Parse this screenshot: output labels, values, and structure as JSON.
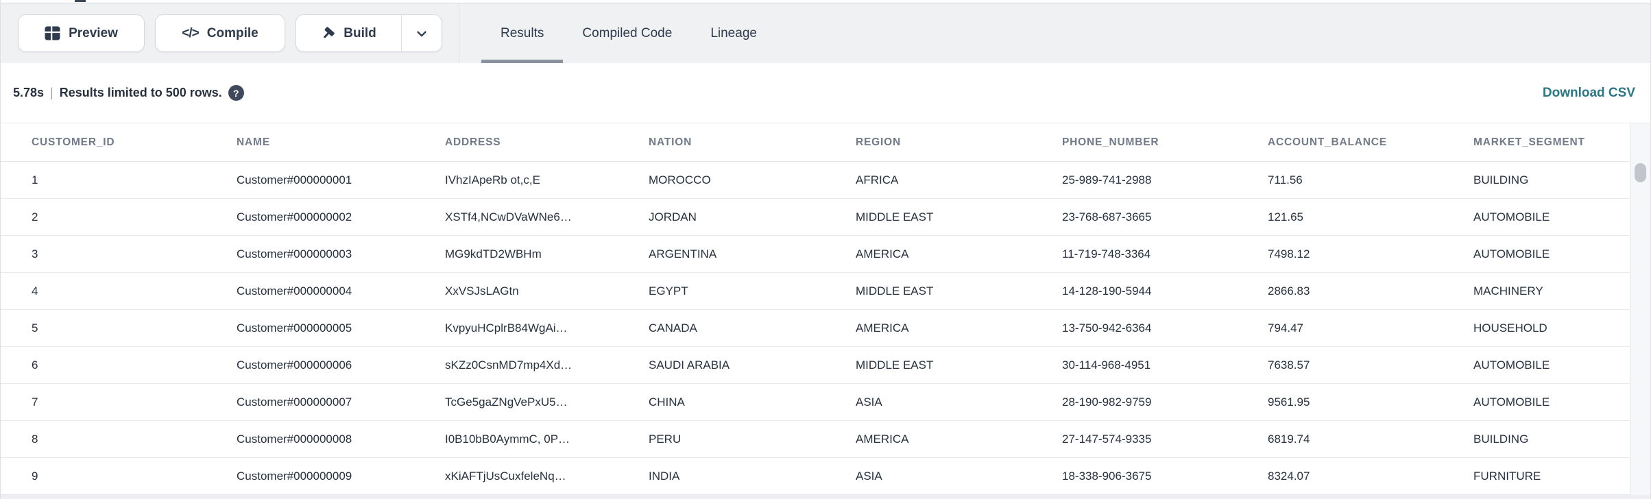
{
  "toolbar": {
    "preview_label": "Preview",
    "compile_label": "Compile",
    "build_label": "Build",
    "tabs": [
      {
        "label": "Results",
        "active": true
      },
      {
        "label": "Compiled Code",
        "active": false
      },
      {
        "label": "Lineage",
        "active": false
      }
    ]
  },
  "status": {
    "duration": "5.78s",
    "separator": "|",
    "message": "Results limited to 500 rows.",
    "help_glyph": "?"
  },
  "actions": {
    "download_csv_label": "Download CSV"
  },
  "table": {
    "columns": [
      "CUSTOMER_ID",
      "NAME",
      "ADDRESS",
      "NATION",
      "REGION",
      "PHONE_NUMBER",
      "ACCOUNT_BALANCE",
      "MARKET_SEGMENT"
    ],
    "rows": [
      [
        "1",
        "Customer#000000001",
        "IVhzIApeRb ot,c,E",
        "MOROCCO",
        "AFRICA",
        "25-989-741-2988",
        "711.56",
        "BUILDING"
      ],
      [
        "2",
        "Customer#000000002",
        "XSTf4,NCwDVaWNe6…",
        "JORDAN",
        "MIDDLE EAST",
        "23-768-687-3665",
        "121.65",
        "AUTOMOBILE"
      ],
      [
        "3",
        "Customer#000000003",
        "MG9kdTD2WBHm",
        "ARGENTINA",
        "AMERICA",
        "11-719-748-3364",
        "7498.12",
        "AUTOMOBILE"
      ],
      [
        "4",
        "Customer#000000004",
        "XxVSJsLAGtn",
        "EGYPT",
        "MIDDLE EAST",
        "14-128-190-5944",
        "2866.83",
        "MACHINERY"
      ],
      [
        "5",
        "Customer#000000005",
        "KvpyuHCplrB84WgAi…",
        "CANADA",
        "AMERICA",
        "13-750-942-6364",
        "794.47",
        "HOUSEHOLD"
      ],
      [
        "6",
        "Customer#000000006",
        "sKZz0CsnMD7mp4Xd…",
        "SAUDI ARABIA",
        "MIDDLE EAST",
        "30-114-968-4951",
        "7638.57",
        "AUTOMOBILE"
      ],
      [
        "7",
        "Customer#000000007",
        "TcGe5gaZNgVePxU5…",
        "CHINA",
        "ASIA",
        "28-190-982-9759",
        "9561.95",
        "AUTOMOBILE"
      ],
      [
        "8",
        "Customer#000000008",
        "I0B10bB0AymmC, 0P…",
        "PERU",
        "AMERICA",
        "27-147-574-9335",
        "6819.74",
        "BUILDING"
      ],
      [
        "9",
        "Customer#000000009",
        "xKiAFTjUsCuxfeleNq…",
        "INDIA",
        "ASIA",
        "18-338-906-3675",
        "8324.07",
        "FURNITURE"
      ]
    ]
  },
  "icons": {
    "preview": "table-grid-icon",
    "compile": "code-icon",
    "build": "hammer-icon",
    "build_menu": "chevron-down-icon",
    "help": "question-circle-icon"
  },
  "colors": {
    "accent_link": "#2a7787",
    "toolbar_bg": "#f0f1f3",
    "tab_underline": "#8a92a0",
    "header_text": "#717a89",
    "cell_text": "#27313f",
    "row_border": "#e8eaed"
  }
}
